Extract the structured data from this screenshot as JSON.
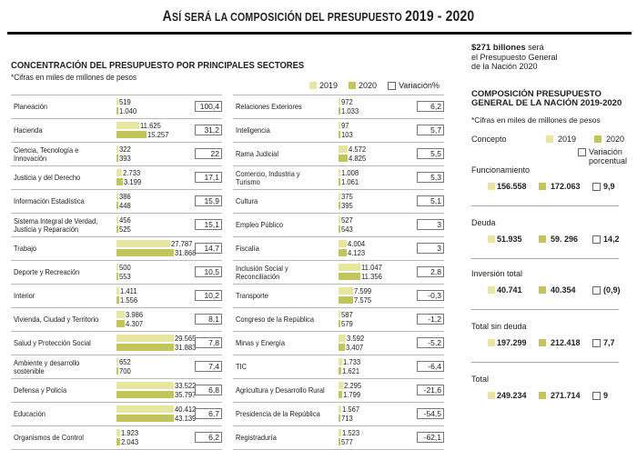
{
  "title_parts": {
    "a": "A",
    "b": "SÍ SERÁ LA COMPOSICIÓN DEL PRESUPUESTO ",
    "c": "2019 - 2020"
  },
  "chart_data": {
    "type": "bar",
    "title": "CONCENTRACIÓN DEL PRESUPUESTO POR PRINCIPALES  SECTORES",
    "subtitle": "*Cifras en miles de millones de pesos",
    "legend": {
      "s2019": "2019",
      "s2020": "2020",
      "variation": "Variación%"
    },
    "series_names": [
      "2019",
      "2020"
    ],
    "sectors": [
      {
        "name": "Planeación",
        "v2019": "519",
        "v2020": "1.040",
        "n2019": 519,
        "n2020": 1040,
        "var": "100,4"
      },
      {
        "name": "Hacienda",
        "v2019": "11.625",
        "v2020": "15.257",
        "n2019": 11625,
        "n2020": 15257,
        "var": "31,2"
      },
      {
        "name": "Ciencia, Tecnología e Innovación",
        "v2019": "322",
        "v2020": "393",
        "n2019": 322,
        "n2020": 393,
        "var": "22"
      },
      {
        "name": "Justicia y del Derecho",
        "v2019": "2.733",
        "v2020": "3.199",
        "n2019": 2733,
        "n2020": 3199,
        "var": "17,1"
      },
      {
        "name": "Información Estadística",
        "v2019": "386",
        "v2020": "448",
        "n2019": 386,
        "n2020": 448,
        "var": "15,9"
      },
      {
        "name": "Sistema Integral de Verdad, Justicia y Reparación",
        "v2019": "456",
        "v2020": "525",
        "n2019": 456,
        "n2020": 525,
        "var": "15,1"
      },
      {
        "name": "Trabajo",
        "v2019": "27.787",
        "v2020": "31.868",
        "n2019": 27787,
        "n2020": 31868,
        "var": "14,7"
      },
      {
        "name": "Deporte y Recreación",
        "v2019": "500",
        "v2020": "553",
        "n2019": 500,
        "n2020": 553,
        "var": "10,5"
      },
      {
        "name": "Interior",
        "v2019": "1.411",
        "v2020": "1.556",
        "n2019": 1411,
        "n2020": 1556,
        "var": "10,2"
      },
      {
        "name": "Vivienda, Ciudad y Territorio",
        "v2019": "3.986",
        "v2020": "4.307",
        "n2019": 3986,
        "n2020": 4307,
        "var": "8,1"
      },
      {
        "name": "Salud y Protección Social",
        "v2019": "29.565",
        "v2020": "31.883",
        "n2019": 29565,
        "n2020": 31883,
        "var": "7,8"
      },
      {
        "name": "Ambiente y desarrollo sostenible",
        "v2019": "652",
        "v2020": "700",
        "n2019": 652,
        "n2020": 700,
        "var": "7,4"
      },
      {
        "name": "Defensa y Policía",
        "v2019": "33.522",
        "v2020": "35.797",
        "n2019": 33522,
        "n2020": 35797,
        "var": "6,8"
      },
      {
        "name": "Educación",
        "v2019": "40.412",
        "v2020": "43.139",
        "n2019": 40412,
        "n2020": 43139,
        "var": "6,7"
      },
      {
        "name": "Organismos de Control",
        "v2019": "1.923",
        "v2020": "2.043",
        "n2019": 1923,
        "n2020": 2043,
        "var": "6,2"
      },
      {
        "name": "Relaciones Exteriores",
        "v2019": "972",
        "v2020": "1.033",
        "n2019": 972,
        "n2020": 1033,
        "var": "6,2"
      },
      {
        "name": "Inteligencia",
        "v2019": "97",
        "v2020": "103",
        "n2019": 97,
        "n2020": 103,
        "var": "5,7"
      },
      {
        "name": "Rama Judicial",
        "v2019": "4.572",
        "v2020": "4.825",
        "n2019": 4572,
        "n2020": 4825,
        "var": "5,5"
      },
      {
        "name": "Comercio, Industria y Turismo",
        "v2019": "1.008",
        "v2020": "1.061",
        "n2019": 1008,
        "n2020": 1061,
        "var": "5,3"
      },
      {
        "name": "Cultura",
        "v2019": "375",
        "v2020": "395",
        "n2019": 375,
        "n2020": 395,
        "var": "5,1"
      },
      {
        "name": "Empleo Público",
        "v2019": "527",
        "v2020": "543",
        "n2019": 527,
        "n2020": 543,
        "var": "3"
      },
      {
        "name": "Fiscalía",
        "v2019": "4.004",
        "v2020": "4.123",
        "n2019": 4004,
        "n2020": 4123,
        "var": "3"
      },
      {
        "name": "Inclusión Social y Reconciliación",
        "v2019": "11.047",
        "v2020": "11.356",
        "n2019": 11047,
        "n2020": 11356,
        "var": "2,8"
      },
      {
        "name": "Transporte",
        "v2019": "7.599",
        "v2020": "7.575",
        "n2019": 7599,
        "n2020": 7575,
        "var": "-0,3"
      },
      {
        "name": "Congreso de la República",
        "v2019": "587",
        "v2020": "579",
        "n2019": 587,
        "n2020": 579,
        "var": "-1,2"
      },
      {
        "name": "Minas y Energía",
        "v2019": "3.592",
        "v2020": "3.407",
        "n2019": 3592,
        "n2020": 3407,
        "var": "-5,2"
      },
      {
        "name": "TIC",
        "v2019": "1.733",
        "v2020": "1.621",
        "n2019": 1733,
        "n2020": 1621,
        "var": "-6,4"
      },
      {
        "name": "Agricultura y Desarrollo Rural",
        "v2019": "2.295",
        "v2020": "1.799",
        "n2019": 2295,
        "n2020": 1799,
        "var": "-21,6"
      },
      {
        "name": "Presidencia de la República",
        "v2019": "1.567",
        "v2020": "713",
        "n2019": 1567,
        "n2020": 713,
        "var": "-54,5"
      },
      {
        "name": "Registraduría",
        "v2019": "1.523",
        "v2020": "577",
        "n2019": 1523,
        "n2020": 577,
        "var": "-62,1"
      }
    ],
    "value_max": 43139
  },
  "colors": {
    "c2019": "#e6e6a0",
    "c2020": "#c3c55a"
  },
  "right_panel": {
    "intro_bold": "$271 billones",
    "intro_rest1": " será",
    "intro_line2": "el Presupuesto General",
    "intro_line3": "de la Nación 2020",
    "head_line1": "COMPOSICIÓN PRESUPUESTO",
    "head_line2": "GENERAL DE LA NACIÓN 2019-2020",
    "subtitle": "*Cifras en miles de millones de pesos",
    "legend_concept": "Concepto",
    "legend_2019": "2019",
    "legend_2020": "2020",
    "legend_var1": "Variación",
    "legend_var2": "porcentual",
    "items": [
      {
        "name": "Funcionamiento",
        "v2019": "156.558",
        "v2020": "172.063",
        "var": "9,9"
      },
      {
        "name": "Deuda",
        "v2019": "51.935",
        "v2020": "59. 296",
        "var": "14,2"
      },
      {
        "name": "Inversión total",
        "v2019": "40.741",
        "v2020": "40.354",
        "var": "(0,9)"
      },
      {
        "name": "Total sin deuda",
        "v2019": "197.299",
        "v2020": "212.418",
        "var": "7,7"
      },
      {
        "name": "Total",
        "v2019": "249.234",
        "v2020": "271.714",
        "var": "9"
      }
    ]
  }
}
